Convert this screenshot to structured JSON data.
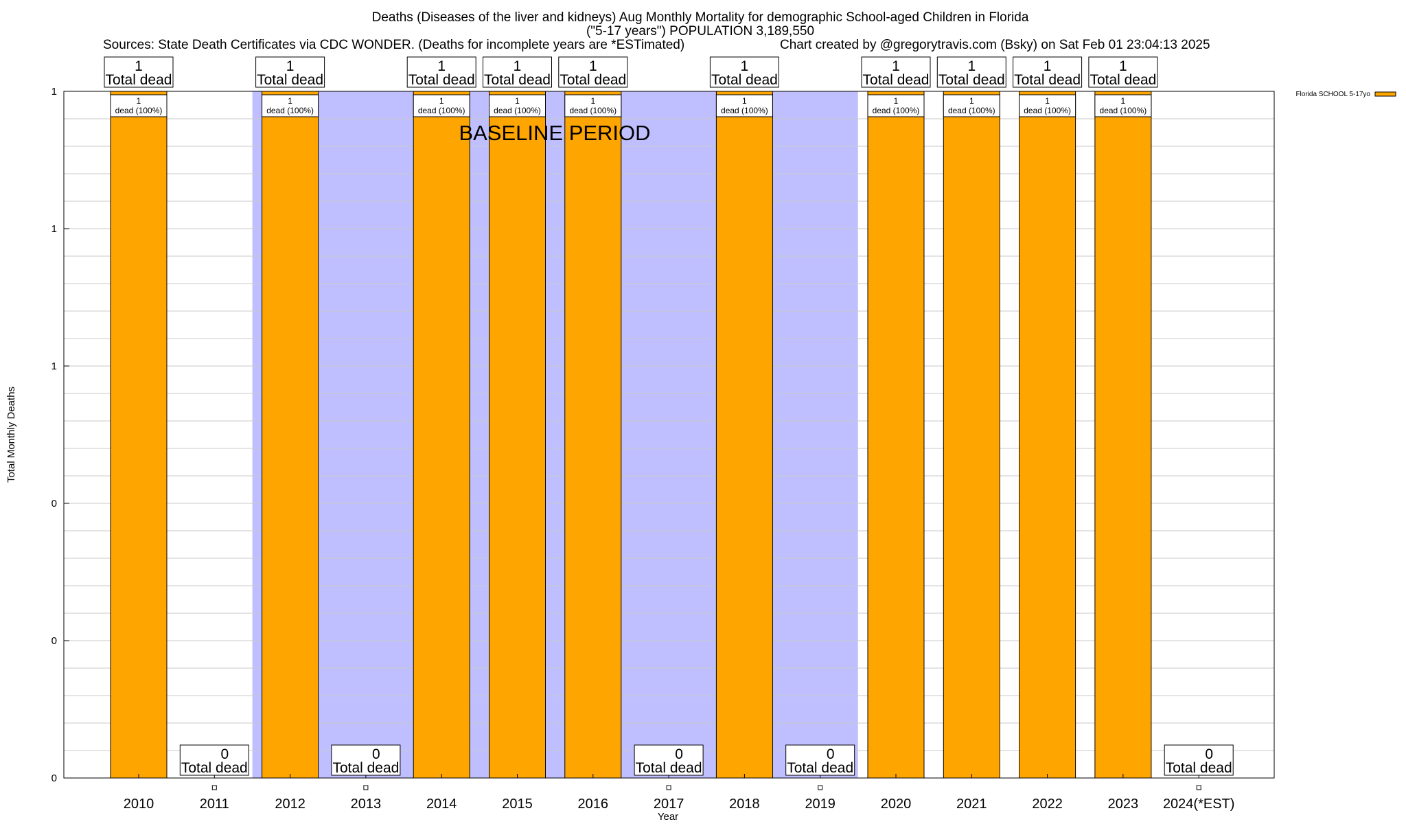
{
  "chart_data": {
    "type": "bar",
    "title_lines": [
      "Deaths (Diseases of the liver and kidneys) Aug Monthly Mortality for demographic School-aged Children in Florida",
      "(\"5-17 years\") POPULATION 3,189,550"
    ],
    "sources": "Sources: State Death Certificates via CDC WONDER. (Deaths for incomplete years are *ESTimated)",
    "credit": "Chart created by @gregorytravis.com (Bsky) on Sat Feb 01 23:04:13 2025",
    "xlabel": "Year",
    "ylabel": "Total Monthly Deaths",
    "categories": [
      "2010",
      "2011",
      "2012",
      "2013",
      "2014",
      "2015",
      "2016",
      "2017",
      "2018",
      "2019",
      "2020",
      "2021",
      "2022",
      "2023",
      "2024(*EST)"
    ],
    "series": [
      {
        "name": "Florida SCHOOL 5-17yo",
        "color": "#FFA500",
        "values": [
          1,
          0,
          1,
          0,
          1,
          1,
          1,
          0,
          1,
          0,
          1,
          1,
          1,
          1,
          0
        ]
      }
    ],
    "ylim": [
      0,
      1
    ],
    "y_tick_values": [
      0,
      0.2,
      0.4,
      0.6,
      0.8,
      1.0
    ],
    "y_tick_labels": [
      "0",
      "0",
      "0",
      "1",
      "1",
      "1"
    ],
    "total_labels": {
      "suffix": "Total dead"
    },
    "bar_labels": {
      "suffix": "dead (100%)"
    },
    "baseline_period": {
      "label": "BASELINE PERIOD",
      "start": "2012",
      "end": "2019",
      "color": "#BFBFFF"
    },
    "grid": true,
    "legend_position": "top-right"
  }
}
